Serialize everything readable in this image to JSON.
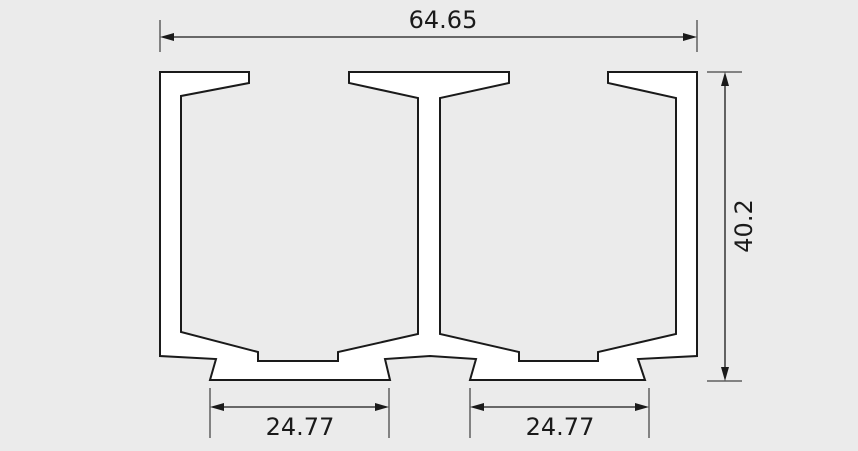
{
  "drawing": {
    "dimensions": {
      "overall_width": "64.65",
      "overall_height": "40.2",
      "left_channel_opening": "24.77",
      "right_channel_opening": "24.77"
    },
    "colors": {
      "background": "#ebebeb",
      "profile_fill": "#ffffff",
      "line": "#1a1a1a"
    }
  }
}
